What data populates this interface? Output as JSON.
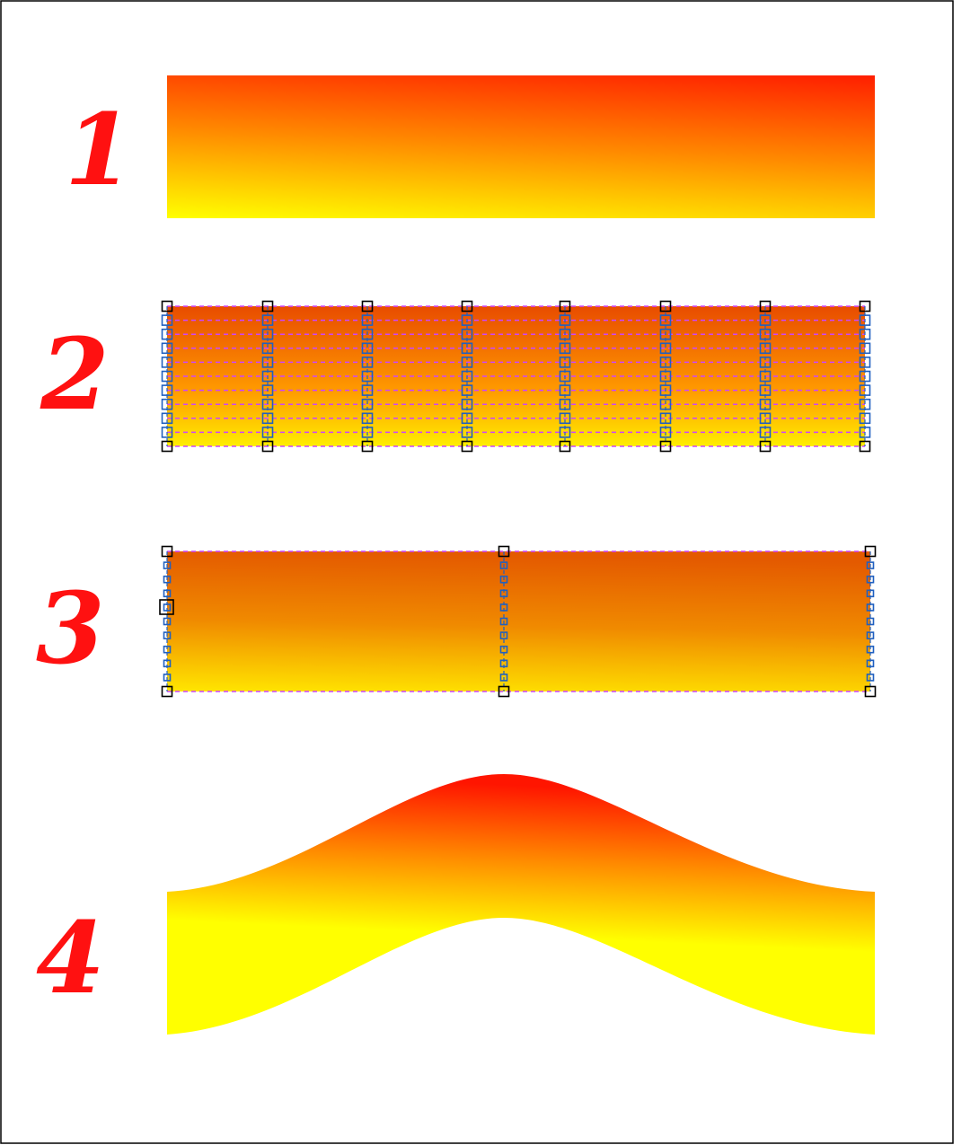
{
  "steps": [
    {
      "number": "1",
      "shape": "plain-gradient-rectangle"
    },
    {
      "number": "2",
      "shape": "dense-mesh-rectangle"
    },
    {
      "number": "3",
      "shape": "simplified-mesh-rectangle"
    },
    {
      "number": "4",
      "shape": "warped-wave-band"
    }
  ],
  "colors": {
    "number_red": "#ff1111",
    "gradient_top": "#ff1a00",
    "gradient_bottom": "#ffff00",
    "mesh_top": "#e64a00",
    "mesh_bottom": "#ffdf00",
    "guide_line": "#cc44ff",
    "handle_outline": "#000000",
    "handle_blue": "#2060c0",
    "frame": "#000000"
  }
}
